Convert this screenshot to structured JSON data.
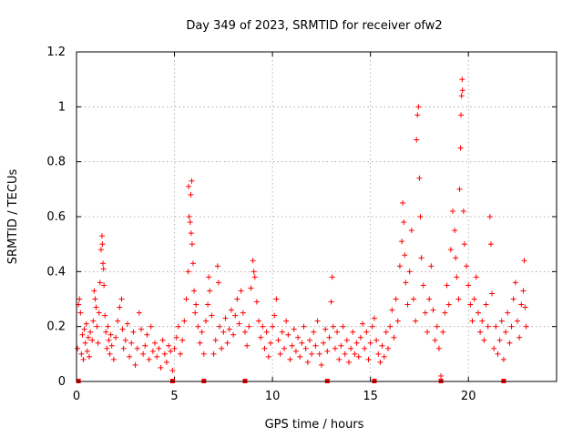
{
  "chart_data": {
    "type": "scatter",
    "title": "Day 349 of 2023, SRMTID for receiver ofw2",
    "xlabel": "GPS time / hours",
    "ylabel": "SRMTID / TECUs",
    "xlim": [
      0,
      24.5
    ],
    "ylim": [
      0,
      1.2
    ],
    "x_ticks": [
      0,
      5,
      10,
      15,
      20
    ],
    "x_tick_labels": [
      "0",
      "5",
      "10",
      "15",
      "20"
    ],
    "y_ticks": [
      0,
      0.2,
      0.4,
      0.6,
      0.8,
      1.0,
      1.2
    ],
    "y_tick_labels": [
      "0",
      "0.2",
      "0.4",
      "0.6",
      "0.8",
      "1",
      "1.2"
    ],
    "grid": true,
    "marker": "+",
    "color": "#ff0000",
    "series": [
      {
        "name": "SRMTID",
        "points": [
          [
            0.05,
            0.12
          ],
          [
            0.1,
            0.28
          ],
          [
            0.15,
            0.3
          ],
          [
            0.2,
            0.25
          ],
          [
            0.25,
            0.1
          ],
          [
            0.3,
            0.17
          ],
          [
            0.35,
            0.08
          ],
          [
            0.4,
            0.19
          ],
          [
            0.45,
            0.14
          ],
          [
            0.5,
            0.21
          ],
          [
            0.55,
            0.11
          ],
          [
            0.6,
            0.16
          ],
          [
            0.65,
            0.09
          ],
          [
            0.7,
            0.18
          ],
          [
            0.8,
            0.15
          ],
          [
            0.85,
            0.22
          ],
          [
            0.9,
            0.33
          ],
          [
            0.95,
            0.3
          ],
          [
            1.0,
            0.27
          ],
          [
            1.05,
            0.2
          ],
          [
            1.1,
            0.14
          ],
          [
            1.15,
            0.25
          ],
          [
            1.2,
            0.36
          ],
          [
            1.25,
            0.48
          ],
          [
            1.3,
            0.53
          ],
          [
            1.32,
            0.5
          ],
          [
            1.35,
            0.43
          ],
          [
            1.38,
            0.41
          ],
          [
            1.4,
            0.35
          ],
          [
            1.45,
            0.24
          ],
          [
            1.5,
            0.18
          ],
          [
            1.55,
            0.12
          ],
          [
            1.6,
            0.2
          ],
          [
            1.65,
            0.15
          ],
          [
            1.7,
            0.1
          ],
          [
            1.75,
            0.17
          ],
          [
            1.8,
            0.13
          ],
          [
            1.9,
            0.08
          ],
          [
            2.0,
            0.16
          ],
          [
            2.1,
            0.22
          ],
          [
            2.2,
            0.27
          ],
          [
            2.3,
            0.3
          ],
          [
            2.35,
            0.19
          ],
          [
            2.4,
            0.12
          ],
          [
            2.5,
            0.15
          ],
          [
            2.6,
            0.21
          ],
          [
            2.7,
            0.09
          ],
          [
            2.8,
            0.14
          ],
          [
            2.9,
            0.18
          ],
          [
            3.0,
            0.06
          ],
          [
            3.1,
            0.12
          ],
          [
            3.2,
            0.25
          ],
          [
            3.3,
            0.19
          ],
          [
            3.4,
            0.1
          ],
          [
            3.5,
            0.13
          ],
          [
            3.6,
            0.17
          ],
          [
            3.7,
            0.08
          ],
          [
            3.8,
            0.2
          ],
          [
            3.9,
            0.11
          ],
          [
            4.0,
            0.14
          ],
          [
            4.1,
            0.09
          ],
          [
            4.2,
            0.12
          ],
          [
            4.3,
            0.05
          ],
          [
            4.4,
            0.15
          ],
          [
            4.5,
            0.1
          ],
          [
            4.6,
            0.07
          ],
          [
            4.7,
            0.13
          ],
          [
            4.8,
            0.11
          ],
          [
            4.9,
            0.04
          ],
          [
            5.0,
            0.12
          ],
          [
            5.1,
            0.16
          ],
          [
            5.2,
            0.2
          ],
          [
            5.3,
            0.1
          ],
          [
            5.4,
            0.15
          ],
          [
            5.5,
            0.22
          ],
          [
            5.6,
            0.3
          ],
          [
            5.7,
            0.4
          ],
          [
            5.72,
            0.71
          ],
          [
            5.75,
            0.6
          ],
          [
            5.8,
            0.58
          ],
          [
            5.83,
            0.68
          ],
          [
            5.85,
            0.54
          ],
          [
            5.88,
            0.73
          ],
          [
            5.9,
            0.5
          ],
          [
            5.95,
            0.43
          ],
          [
            6.0,
            0.33
          ],
          [
            6.05,
            0.25
          ],
          [
            6.1,
            0.28
          ],
          [
            6.2,
            0.2
          ],
          [
            6.3,
            0.14
          ],
          [
            6.4,
            0.18
          ],
          [
            6.5,
            0.1
          ],
          [
            6.6,
            0.22
          ],
          [
            6.7,
            0.28
          ],
          [
            6.75,
            0.38
          ],
          [
            6.8,
            0.33
          ],
          [
            6.9,
            0.24
          ],
          [
            7.0,
            0.1
          ],
          [
            7.1,
            0.15
          ],
          [
            7.2,
            0.42
          ],
          [
            7.25,
            0.36
          ],
          [
            7.3,
            0.2
          ],
          [
            7.4,
            0.12
          ],
          [
            7.5,
            0.18
          ],
          [
            7.6,
            0.23
          ],
          [
            7.7,
            0.14
          ],
          [
            7.8,
            0.19
          ],
          [
            7.9,
            0.26
          ],
          [
            8.0,
            0.17
          ],
          [
            8.1,
            0.24
          ],
          [
            8.2,
            0.3
          ],
          [
            8.3,
            0.21
          ],
          [
            8.4,
            0.33
          ],
          [
            8.5,
            0.25
          ],
          [
            8.6,
            0.18
          ],
          [
            8.7,
            0.13
          ],
          [
            8.8,
            0.2
          ],
          [
            8.9,
            0.34
          ],
          [
            9.0,
            0.44
          ],
          [
            9.05,
            0.4
          ],
          [
            9.1,
            0.38
          ],
          [
            9.2,
            0.29
          ],
          [
            9.3,
            0.22
          ],
          [
            9.4,
            0.16
          ],
          [
            9.5,
            0.2
          ],
          [
            9.6,
            0.12
          ],
          [
            9.7,
            0.18
          ],
          [
            9.8,
            0.09
          ],
          [
            9.9,
            0.14
          ],
          [
            10.0,
            0.2
          ],
          [
            10.1,
            0.24
          ],
          [
            10.2,
            0.3
          ],
          [
            10.3,
            0.15
          ],
          [
            10.4,
            0.1
          ],
          [
            10.5,
            0.18
          ],
          [
            10.6,
            0.12
          ],
          [
            10.7,
            0.22
          ],
          [
            10.8,
            0.17
          ],
          [
            10.9,
            0.08
          ],
          [
            11.0,
            0.13
          ],
          [
            11.1,
            0.19
          ],
          [
            11.2,
            0.11
          ],
          [
            11.3,
            0.16
          ],
          [
            11.4,
            0.09
          ],
          [
            11.5,
            0.14
          ],
          [
            11.6,
            0.2
          ],
          [
            11.7,
            0.12
          ],
          [
            11.8,
            0.07
          ],
          [
            11.9,
            0.15
          ],
          [
            12.0,
            0.1
          ],
          [
            12.1,
            0.18
          ],
          [
            12.2,
            0.13
          ],
          [
            12.3,
            0.22
          ],
          [
            12.4,
            0.1
          ],
          [
            12.5,
            0.06
          ],
          [
            12.6,
            0.14
          ],
          [
            12.7,
            0.19
          ],
          [
            12.8,
            0.11
          ],
          [
            12.9,
            0.16
          ],
          [
            13.0,
            0.29
          ],
          [
            13.05,
            0.38
          ],
          [
            13.1,
            0.2
          ],
          [
            13.2,
            0.12
          ],
          [
            13.3,
            0.18
          ],
          [
            13.4,
            0.08
          ],
          [
            13.5,
            0.13
          ],
          [
            13.6,
            0.2
          ],
          [
            13.7,
            0.1
          ],
          [
            13.8,
            0.15
          ],
          [
            13.9,
            0.07
          ],
          [
            14.0,
            0.12
          ],
          [
            14.1,
            0.18
          ],
          [
            14.2,
            0.1
          ],
          [
            14.3,
            0.14
          ],
          [
            14.4,
            0.09
          ],
          [
            14.5,
            0.16
          ],
          [
            14.6,
            0.21
          ],
          [
            14.7,
            0.12
          ],
          [
            14.8,
            0.18
          ],
          [
            14.9,
            0.08
          ],
          [
            15.0,
            0.14
          ],
          [
            15.1,
            0.2
          ],
          [
            15.2,
            0.23
          ],
          [
            15.3,
            0.15
          ],
          [
            15.4,
            0.1
          ],
          [
            15.5,
            0.07
          ],
          [
            15.6,
            0.13
          ],
          [
            15.7,
            0.09
          ],
          [
            15.8,
            0.18
          ],
          [
            15.9,
            0.12
          ],
          [
            16.0,
            0.2
          ],
          [
            16.1,
            0.26
          ],
          [
            16.2,
            0.16
          ],
          [
            16.3,
            0.3
          ],
          [
            16.4,
            0.22
          ],
          [
            16.5,
            0.42
          ],
          [
            16.6,
            0.51
          ],
          [
            16.65,
            0.65
          ],
          [
            16.7,
            0.58
          ],
          [
            16.75,
            0.46
          ],
          [
            16.8,
            0.36
          ],
          [
            16.9,
            0.28
          ],
          [
            17.0,
            0.4
          ],
          [
            17.1,
            0.55
          ],
          [
            17.2,
            0.3
          ],
          [
            17.3,
            0.22
          ],
          [
            17.35,
            0.88
          ],
          [
            17.4,
            0.97
          ],
          [
            17.45,
            1.0
          ],
          [
            17.5,
            0.74
          ],
          [
            17.55,
            0.6
          ],
          [
            17.6,
            0.45
          ],
          [
            17.7,
            0.35
          ],
          [
            17.8,
            0.25
          ],
          [
            17.9,
            0.18
          ],
          [
            18.0,
            0.3
          ],
          [
            18.1,
            0.42
          ],
          [
            18.2,
            0.26
          ],
          [
            18.3,
            0.15
          ],
          [
            18.4,
            0.2
          ],
          [
            18.5,
            0.12
          ],
          [
            18.6,
            0.02
          ],
          [
            18.7,
            0.18
          ],
          [
            18.8,
            0.25
          ],
          [
            18.9,
            0.35
          ],
          [
            19.0,
            0.28
          ],
          [
            19.1,
            0.48
          ],
          [
            19.2,
            0.62
          ],
          [
            19.3,
            0.55
          ],
          [
            19.35,
            0.45
          ],
          [
            19.4,
            0.38
          ],
          [
            19.5,
            0.3
          ],
          [
            19.55,
            0.7
          ],
          [
            19.6,
            0.85
          ],
          [
            19.62,
            0.97
          ],
          [
            19.65,
            1.04
          ],
          [
            19.68,
            1.1
          ],
          [
            19.7,
            1.06
          ],
          [
            19.75,
            0.62
          ],
          [
            19.8,
            0.5
          ],
          [
            19.9,
            0.42
          ],
          [
            20.0,
            0.35
          ],
          [
            20.1,
            0.28
          ],
          [
            20.2,
            0.22
          ],
          [
            20.3,
            0.3
          ],
          [
            20.4,
            0.38
          ],
          [
            20.5,
            0.25
          ],
          [
            20.6,
            0.18
          ],
          [
            20.7,
            0.22
          ],
          [
            20.8,
            0.15
          ],
          [
            20.9,
            0.28
          ],
          [
            21.0,
            0.2
          ],
          [
            21.1,
            0.6
          ],
          [
            21.15,
            0.5
          ],
          [
            21.2,
            0.32
          ],
          [
            21.3,
            0.12
          ],
          [
            21.4,
            0.2
          ],
          [
            21.5,
            0.1
          ],
          [
            21.6,
            0.15
          ],
          [
            21.7,
            0.22
          ],
          [
            21.8,
            0.08
          ],
          [
            21.9,
            0.18
          ],
          [
            22.0,
            0.25
          ],
          [
            22.1,
            0.14
          ],
          [
            22.2,
            0.2
          ],
          [
            22.3,
            0.3
          ],
          [
            22.4,
            0.36
          ],
          [
            22.5,
            0.22
          ],
          [
            22.6,
            0.16
          ],
          [
            22.7,
            0.28
          ],
          [
            22.8,
            0.33
          ],
          [
            22.85,
            0.44
          ],
          [
            22.9,
            0.27
          ],
          [
            22.95,
            0.2
          ]
        ],
        "x_axis_markers": [
          0.1,
          4.9,
          6.5,
          8.6,
          12.8,
          15.2,
          18.6,
          21.8
        ]
      }
    ]
  }
}
